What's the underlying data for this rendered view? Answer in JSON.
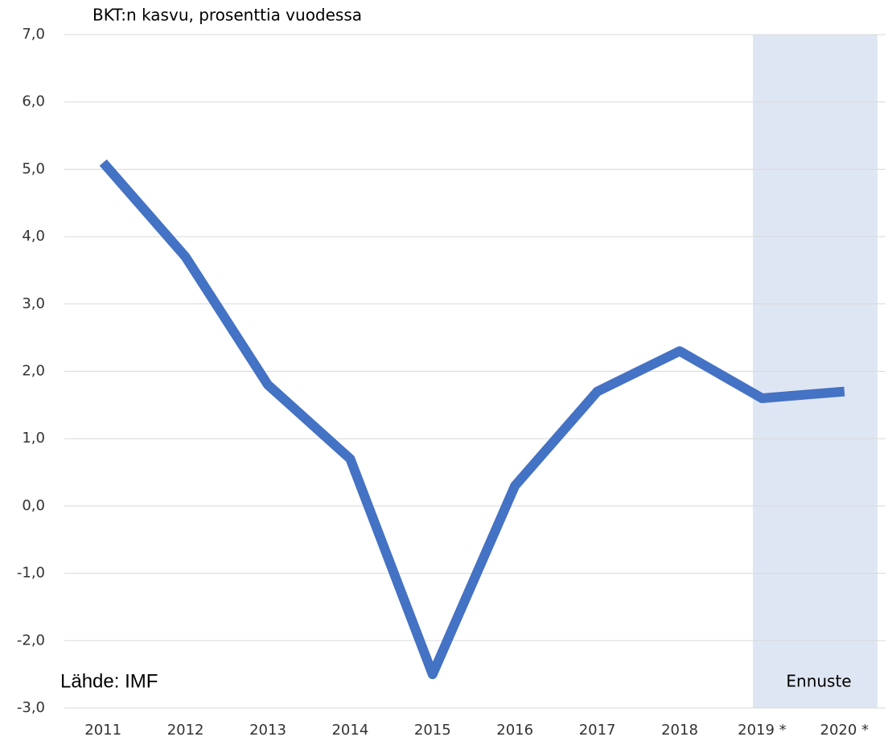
{
  "chart_data": {
    "type": "line",
    "title": "BKT:n kasvu, prosenttia vuodessa",
    "annotations": [
      "Lähde: IMF",
      "Ennuste"
    ],
    "categories": [
      "2011",
      "2012",
      "2013",
      "2014",
      "2015",
      "2016",
      "2017",
      "2018",
      "2019 *",
      "2020 *"
    ],
    "series": [
      {
        "name": "BKT:n kasvu",
        "color": "#4472c4",
        "values": [
          5.1,
          3.7,
          1.8,
          0.7,
          -2.5,
          0.3,
          1.7,
          2.3,
          1.6,
          1.7
        ]
      }
    ],
    "ylim": [
      -3,
      7
    ],
    "yticks": [
      {
        "value": -3,
        "label": "-3,0"
      },
      {
        "value": -2,
        "label": "-2,0"
      },
      {
        "value": -1,
        "label": "-1,0"
      },
      {
        "value": 0,
        "label": "0,0"
      },
      {
        "value": 1,
        "label": "1,0"
      },
      {
        "value": 2,
        "label": "2,0"
      },
      {
        "value": 3,
        "label": "3,0"
      },
      {
        "value": 4,
        "label": "4,0"
      },
      {
        "value": 5,
        "label": "5,0"
      },
      {
        "value": 6,
        "label": "6,0"
      },
      {
        "value": 7,
        "label": "7,0"
      }
    ],
    "grid": true
  }
}
